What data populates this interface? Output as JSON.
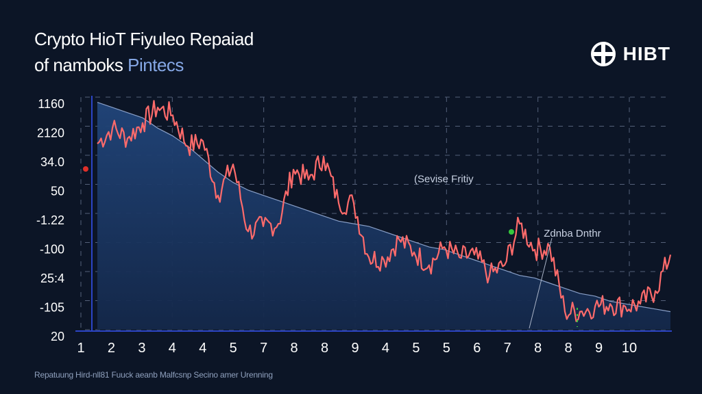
{
  "title": {
    "line1": "Crypto HioT Fiyuleo Repaiad",
    "line2_main": "of namboks",
    "line2_accent": "Pintecs"
  },
  "brand": {
    "name": "HIBT",
    "icon": "globe-icon"
  },
  "caption": "Repatuung Hird-nll81 Fuuck aeanb Malfcsnp Secino amer Urenning",
  "colors": {
    "background": "#0c1526",
    "line": "#ff6b6b",
    "area": "#1b3a66",
    "axis": "#2c45c8",
    "grid": "#53607a",
    "marker_red": "#e0302a",
    "marker_green": "#35c83c"
  },
  "chart_data": {
    "type": "line",
    "title": "",
    "xlabel": "",
    "ylabel": "",
    "y_tick_labels": [
      "1160",
      "2120",
      "34.0",
      "50",
      "-1.22",
      "-100",
      "25:4",
      "-105",
      "20"
    ],
    "x_tick_labels": [
      "1",
      "2",
      "3",
      "4",
      "4",
      "5",
      "7",
      "8",
      "8",
      "9",
      "4",
      "5",
      "5",
      "6",
      "7",
      "8",
      "8",
      "9",
      "10"
    ],
    "x": [
      0,
      0.5,
      1,
      1.5,
      2,
      2.5,
      3,
      3.5,
      4,
      4.5,
      5,
      5.5,
      6,
      6.5,
      7,
      7.5,
      8,
      8.5,
      9,
      9.5,
      10,
      10.5,
      11,
      11.5,
      12,
      12.5,
      13,
      13.5,
      14,
      14.5,
      15,
      15.5,
      16,
      16.5,
      17,
      17.5,
      18,
      18.5,
      19
    ],
    "series": [
      {
        "values": [
          6.7,
          7.3,
          6.9,
          7.5,
          8.1,
          7.8,
          6.6,
          6.8,
          4.7,
          5.9,
          3.3,
          3.5,
          3.6,
          5.7,
          5.3,
          6.2,
          4.4,
          4.4,
          2.3,
          2.2,
          3.0,
          2.5,
          2.0,
          2.7,
          2.3,
          2.4,
          1.6,
          2.0,
          3.6,
          2.6,
          2.7,
          0.2,
          0.2,
          0.4,
          0.5,
          0.4,
          0.5,
          1.0,
          2.4
        ]
      },
      {
        "values": [
          8.3,
          8.1,
          7.9,
          7.7,
          7.3,
          7.0,
          6.6,
          6.1,
          5.6,
          5.2,
          4.9,
          4.7,
          4.5,
          4.3,
          4.1,
          3.9,
          3.7,
          3.6,
          3.5,
          3.3,
          3.1,
          2.9,
          2.7,
          2.6,
          2.4,
          2.2,
          2.0,
          1.8,
          1.6,
          1.5,
          1.3,
          1.1,
          0.9,
          0.8,
          0.6,
          0.5,
          0.4,
          0.3,
          0.2
        ]
      }
    ],
    "ylim": [
      -0.5,
      8.5
    ],
    "xlim": [
      0,
      19
    ],
    "grid": true,
    "annotations": [
      {
        "text": "(Sevise Fritiy",
        "x": 10.5,
        "y": 5.2
      },
      {
        "text": "Zdnba Dnthr",
        "x": 14.8,
        "y": 3.1
      }
    ]
  }
}
